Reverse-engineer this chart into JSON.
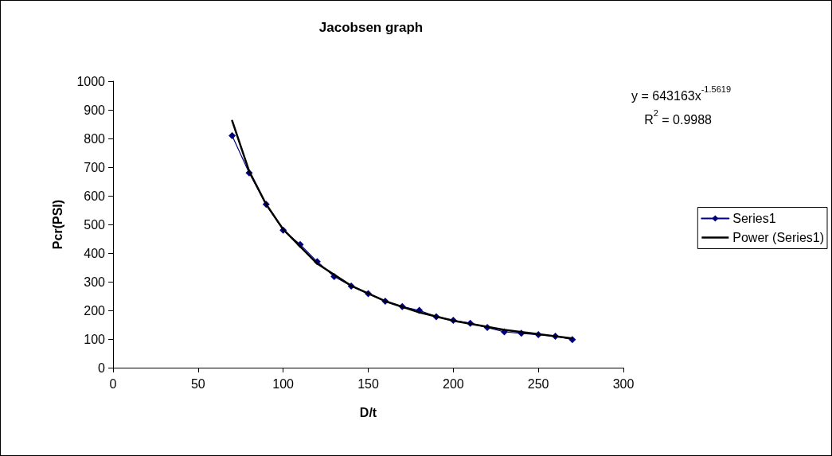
{
  "chart_data": {
    "type": "line",
    "title": "Jacobsen graph",
    "xlabel": "D/t",
    "ylabel": "Pcr(PSI)",
    "x": [
      70,
      80,
      90,
      100,
      110,
      120,
      130,
      140,
      150,
      160,
      170,
      180,
      190,
      200,
      210,
      220,
      230,
      240,
      250,
      260,
      270
    ],
    "series": [
      {
        "name": "Series1",
        "color": "#000080",
        "marker": "diamond",
        "values": [
          810,
          680,
          570,
          480,
          430,
          370,
          318,
          285,
          258,
          232,
          213,
          200,
          178,
          165,
          155,
          140,
          125,
          120,
          115,
          110,
          98
        ]
      },
      {
        "name": "Power (Series1)",
        "color": "#000000",
        "marker": "none",
        "x": [
          70,
          80,
          90,
          100,
          120,
          140,
          160,
          180,
          200,
          230,
          270
        ],
        "values": [
          862,
          686,
          570,
          483,
          363,
          286,
          232,
          193,
          164,
          132,
          102
        ]
      }
    ],
    "annotations": [
      "y = 643163x$^{-1.5619}$",
      "R$^{2}$ = 0.9988"
    ],
    "xlim": [
      0,
      300
    ],
    "xticks": [
      0,
      50,
      100,
      150,
      200,
      250,
      300
    ],
    "ylim": [
      0,
      1000
    ],
    "yticks": [
      0,
      100,
      200,
      300,
      400,
      500,
      600,
      700,
      800,
      900,
      1000
    ],
    "grid": false,
    "legend": "right",
    "line_style": "solid"
  }
}
